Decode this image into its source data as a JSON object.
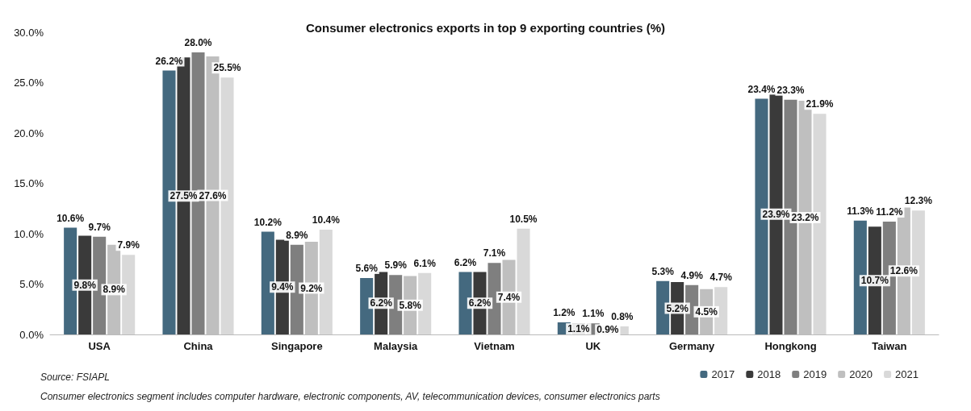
{
  "chart_data": {
    "type": "bar",
    "title": "Consumer electronics exports in top 9 exporting countries (%)",
    "categories": [
      "USA",
      "China",
      "Singapore",
      "Malaysia",
      "Vietnam",
      "UK",
      "Germany",
      "Hongkong",
      "Taiwan"
    ],
    "series": [
      {
        "name": "2017",
        "color": "#44697f",
        "values": [
          10.6,
          26.2,
          10.2,
          5.6,
          6.2,
          1.2,
          5.3,
          23.4,
          11.3
        ],
        "value_labels": [
          "10.6%",
          "26.2%",
          "10.2%",
          "5.6%",
          "6.2%",
          "1.2%",
          "5.3%",
          "23.4%",
          "11.3%"
        ]
      },
      {
        "name": "2018",
        "color": "#3a3a3a",
        "values": [
          9.8,
          27.5,
          9.4,
          6.2,
          6.2,
          1.1,
          5.2,
          23.9,
          10.7
        ],
        "value_labels": [
          "9.8%",
          "27.5%",
          "9.4%",
          "6.2%",
          "6.2%",
          "1.1%",
          "5.2%",
          "23.9%",
          "10.7%"
        ]
      },
      {
        "name": "2019",
        "color": "#7f7f7f",
        "values": [
          9.7,
          28.0,
          8.9,
          5.9,
          7.1,
          1.1,
          4.9,
          23.3,
          11.2
        ],
        "value_labels": [
          "9.7%",
          "28.0%",
          "8.9%",
          "5.9%",
          "7.1%",
          "1.1%",
          "4.9%",
          "23.3%",
          "11.2%"
        ]
      },
      {
        "name": "2020",
        "color": "#bfbfbf",
        "values": [
          8.9,
          27.6,
          9.2,
          5.8,
          7.4,
          0.9,
          4.5,
          23.2,
          12.6
        ],
        "value_labels": [
          "8.9%",
          "27.6%",
          "9.2%",
          "5.8%",
          "7.4%",
          "0.9%",
          "4.5%",
          "23.2%",
          "12.6%"
        ]
      },
      {
        "name": "2021",
        "color": "#d9d9d9",
        "values": [
          7.9,
          25.5,
          10.4,
          6.1,
          10.5,
          0.8,
          4.7,
          21.9,
          12.3
        ],
        "value_labels": [
          "7.9%",
          "25.5%",
          "10.4%",
          "6.1%",
          "10.5%",
          "0.8%",
          "4.7%",
          "21.9%",
          "12.3%"
        ]
      }
    ],
    "ylim": [
      0,
      30
    ],
    "yticks": [
      {
        "value": 0,
        "label": "0.0%"
      },
      {
        "value": 5,
        "label": "5.0%"
      },
      {
        "value": 10,
        "label": "10.0%"
      },
      {
        "value": 15,
        "label": "15.0%"
      },
      {
        "value": 20,
        "label": "20.0%"
      },
      {
        "value": 25,
        "label": "25.0%"
      },
      {
        "value": 30,
        "label": "30.0%"
      }
    ],
    "grid": false,
    "legend": "bottom right",
    "annotations": [
      "Source: FSIAPL",
      "Consumer electronics segment includes computer hardware, electronic components, AV, telecommunication devices, consumer electronics parts"
    ]
  }
}
